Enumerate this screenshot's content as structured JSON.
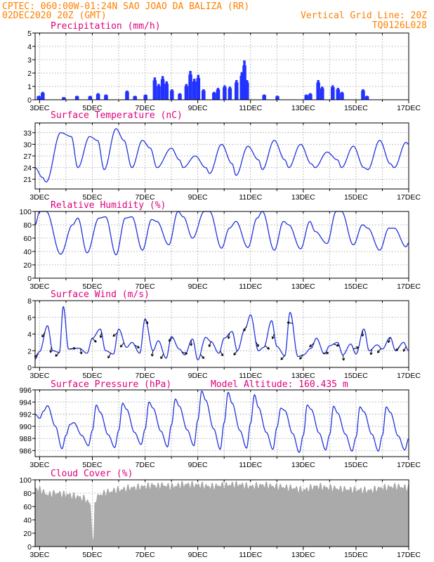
{
  "header": {
    "line1": "CPTEC:   060:00W-01:24N  SAO JOAO DA BALIZA (RR)",
    "line2_left": "02DEC2020 20Z (GMT)",
    "line2_right": "Vertical Grid Line: 20Z",
    "line3_right": "TQ0126L028"
  },
  "colors": {
    "header": "#ff8000",
    "title": "#e0007a",
    "line": "#2233dd",
    "bar": "#2233ff",
    "cloud": "#aaaaaa",
    "arrow": "#000000"
  },
  "x_tick_labels": [
    "3DEC",
    "5DEC",
    "7DEC",
    "9DEC",
    "11DEC",
    "13DEC",
    "15DEC",
    "17DEC"
  ],
  "chart_data": [
    {
      "type": "bar",
      "title": "Precipitation (mm/h)",
      "ylim": [
        0,
        5
      ],
      "yticks": [
        "0",
        "1",
        "2",
        "3",
        "4",
        "5"
      ],
      "x_range_days": [
        2.83,
        17.0
      ],
      "events": [
        {
          "x": 2.95,
          "v": 0.3
        },
        {
          "x": 3.1,
          "v": 0.6
        },
        {
          "x": 3.9,
          "v": 0.2
        },
        {
          "x": 4.4,
          "v": 0.3
        },
        {
          "x": 4.9,
          "v": 0.3
        },
        {
          "x": 5.2,
          "v": 0.5
        },
        {
          "x": 5.5,
          "v": 0.4
        },
        {
          "x": 6.3,
          "v": 0.7
        },
        {
          "x": 6.6,
          "v": 0.3
        },
        {
          "x": 7.0,
          "v": 0.4
        },
        {
          "x": 7.35,
          "v": 1.7
        },
        {
          "x": 7.5,
          "v": 1.2
        },
        {
          "x": 7.65,
          "v": 1.8
        },
        {
          "x": 7.8,
          "v": 1.4
        },
        {
          "x": 8.0,
          "v": 0.8
        },
        {
          "x": 8.3,
          "v": 0.5
        },
        {
          "x": 8.55,
          "v": 1.2
        },
        {
          "x": 8.7,
          "v": 2.2
        },
        {
          "x": 8.85,
          "v": 1.6
        },
        {
          "x": 9.0,
          "v": 1.9
        },
        {
          "x": 9.2,
          "v": 0.8
        },
        {
          "x": 9.6,
          "v": 0.6
        },
        {
          "x": 9.75,
          "v": 0.9
        },
        {
          "x": 10.0,
          "v": 1.1
        },
        {
          "x": 10.2,
          "v": 1.0
        },
        {
          "x": 10.45,
          "v": 1.5
        },
        {
          "x": 10.65,
          "v": 2.1
        },
        {
          "x": 10.75,
          "v": 3.0
        },
        {
          "x": 10.85,
          "v": 1.5
        },
        {
          "x": 11.5,
          "v": 0.4
        },
        {
          "x": 12.0,
          "v": 0.3
        },
        {
          "x": 13.1,
          "v": 0.4
        },
        {
          "x": 13.25,
          "v": 0.5
        },
        {
          "x": 13.55,
          "v": 1.5
        },
        {
          "x": 13.7,
          "v": 1.0
        },
        {
          "x": 14.1,
          "v": 1.1
        },
        {
          "x": 14.3,
          "v": 0.9
        },
        {
          "x": 14.45,
          "v": 0.6
        },
        {
          "x": 15.25,
          "v": 0.8
        },
        {
          "x": 15.4,
          "v": 0.3
        }
      ]
    },
    {
      "type": "line",
      "title": "Surface Temperature (nC)",
      "ylim": [
        18.5,
        35.5
      ],
      "yticks": [
        "21",
        "24",
        "27",
        "30",
        "33"
      ],
      "ytick_values": [
        21,
        24,
        27,
        30,
        33
      ],
      "x_range_days": [
        2.83,
        17.0
      ],
      "key_days": [
        2.83,
        3.1,
        3.25,
        3.8,
        4.2,
        4.45,
        4.9,
        5.2,
        5.45,
        5.9,
        6.2,
        6.5,
        6.9,
        7.2,
        7.45,
        8.0,
        8.3,
        8.45,
        8.9,
        9.3,
        9.45,
        9.9,
        10.3,
        10.45,
        10.9,
        11.3,
        11.45,
        11.9,
        12.3,
        12.45,
        12.9,
        13.3,
        13.45,
        13.9,
        14.3,
        14.45,
        14.9,
        15.3,
        15.45,
        15.9,
        16.3,
        16.45,
        16.9,
        17.0
      ],
      "key_values": [
        24,
        21.5,
        20.3,
        33,
        32,
        24,
        32,
        31,
        23.5,
        34,
        31,
        24,
        31,
        29,
        24,
        29,
        26,
        24,
        27,
        24,
        22.5,
        30,
        25,
        22,
        29.5,
        26,
        23.5,
        31,
        26,
        24,
        30,
        25,
        24,
        28,
        26,
        24,
        29.5,
        24,
        23.5,
        31,
        25,
        24,
        30.5,
        30
      ]
    },
    {
      "type": "line",
      "title": "Relative Humidity (%)",
      "ylim": [
        0,
        100
      ],
      "yticks": [
        "0",
        "20",
        "40",
        "60",
        "80",
        "100"
      ],
      "ytick_values": [
        0,
        20,
        40,
        60,
        80,
        100
      ],
      "x_range_days": [
        2.83,
        17.0
      ],
      "key_days": [
        2.83,
        3.0,
        3.25,
        3.8,
        4.25,
        4.45,
        4.8,
        5.25,
        5.5,
        5.9,
        6.25,
        6.5,
        6.9,
        7.25,
        7.45,
        7.9,
        8.25,
        8.45,
        8.8,
        9.25,
        9.45,
        9.9,
        10.2,
        10.45,
        10.9,
        11.25,
        11.45,
        11.9,
        12.25,
        12.45,
        12.9,
        13.25,
        13.45,
        13.9,
        14.25,
        14.45,
        14.9,
        15.25,
        15.45,
        15.9,
        16.25,
        16.45,
        16.9,
        17.0
      ],
      "key_values": [
        80,
        100,
        100,
        36,
        80,
        90,
        38,
        90,
        92,
        35,
        90,
        92,
        42,
        88,
        85,
        50,
        100,
        92,
        60,
        100,
        100,
        45,
        75,
        85,
        46,
        90,
        100,
        42,
        85,
        80,
        44,
        85,
        70,
        52,
        100,
        100,
        50,
        80,
        75,
        42,
        75,
        75,
        47,
        53
      ]
    },
    {
      "type": "line",
      "title": "Surface Wind (m/s)",
      "ylim": [
        0,
        8
      ],
      "yticks": [
        "0",
        "2",
        "4",
        "6",
        "8"
      ],
      "ytick_values": [
        0,
        2,
        4,
        6,
        8
      ],
      "x_range_days": [
        2.83,
        17.0
      ],
      "key_days": [
        2.83,
        3.0,
        3.3,
        3.5,
        3.75,
        3.9,
        4.1,
        4.5,
        4.8,
        5.0,
        5.3,
        5.5,
        5.8,
        6.0,
        6.3,
        6.5,
        6.8,
        7.0,
        7.3,
        7.5,
        7.8,
        8.0,
        8.3,
        8.5,
        8.8,
        9.0,
        9.3,
        9.5,
        9.8,
        10.0,
        10.3,
        10.5,
        10.8,
        11.0,
        11.3,
        11.5,
        11.8,
        12.0,
        12.3,
        12.5,
        12.8,
        13.0,
        13.3,
        13.5,
        13.8,
        14.0,
        14.3,
        14.5,
        14.8,
        15.0,
        15.3,
        15.5,
        15.8,
        16.0,
        16.3,
        16.5,
        16.8,
        17.0
      ],
      "key_values": [
        1.0,
        1.9,
        5.0,
        2.0,
        1.8,
        7.3,
        2.2,
        2.3,
        1.7,
        3.5,
        4.6,
        2.0,
        1.6,
        4.6,
        2.4,
        3.0,
        1.7,
        5.8,
        2.0,
        3.2,
        1.1,
        3.7,
        2.2,
        1.5,
        3.4,
        0.9,
        3.6,
        3.1,
        1.7,
        3.5,
        4.3,
        2.0,
        4.7,
        6.3,
        2.0,
        2.4,
        5.6,
        2.5,
        1.4,
        6.6,
        1.3,
        1.5,
        2.3,
        3.5,
        1.6,
        2.6,
        3.0,
        1.5,
        2.8,
        1.6,
        4.6,
        2.0,
        2.7,
        2.2,
        3.6,
        2.0,
        3.0,
        2.0
      ],
      "vectors": [
        {
          "x": 2.95,
          "ang": -130
        },
        {
          "x": 3.2,
          "ang": -120
        },
        {
          "x": 3.45,
          "ang": -100
        },
        {
          "x": 3.75,
          "ang": -135
        },
        {
          "x": 4.15,
          "ang": 10
        },
        {
          "x": 4.55,
          "ang": -80
        },
        {
          "x": 5.0,
          "ang": -45
        },
        {
          "x": 5.35,
          "ang": -100
        },
        {
          "x": 5.7,
          "ang": -120
        },
        {
          "x": 5.95,
          "ang": -140
        },
        {
          "x": 6.2,
          "ang": -130
        },
        {
          "x": 6.6,
          "ang": -30
        },
        {
          "x": 7.0,
          "ang": -60
        },
        {
          "x": 7.3,
          "ang": -100
        },
        {
          "x": 7.7,
          "ang": -120
        },
        {
          "x": 8.05,
          "ang": -135
        },
        {
          "x": 8.4,
          "ang": -20
        },
        {
          "x": 8.75,
          "ang": -90
        },
        {
          "x": 9.1,
          "ang": -50
        },
        {
          "x": 9.5,
          "ang": -110
        },
        {
          "x": 9.85,
          "ang": -60
        },
        {
          "x": 10.2,
          "ang": -100
        },
        {
          "x": 10.5,
          "ang": -130
        },
        {
          "x": 10.85,
          "ang": -120
        },
        {
          "x": 11.2,
          "ang": -60
        },
        {
          "x": 11.55,
          "ang": -40
        },
        {
          "x": 11.9,
          "ang": -110
        },
        {
          "x": 12.3,
          "ang": -135
        },
        {
          "x": 12.6,
          "ang": 170
        },
        {
          "x": 13.0,
          "ang": -130
        },
        {
          "x": 13.4,
          "ang": -140
        },
        {
          "x": 13.75,
          "ang": 0
        },
        {
          "x": 14.15,
          "ang": -20
        },
        {
          "x": 14.5,
          "ang": -80
        },
        {
          "x": 14.9,
          "ang": 20
        },
        {
          "x": 15.25,
          "ang": -90
        },
        {
          "x": 15.6,
          "ang": -100
        },
        {
          "x": 15.95,
          "ang": -130
        },
        {
          "x": 16.3,
          "ang": -110
        },
        {
          "x": 16.65,
          "ang": -130
        },
        {
          "x": 16.9,
          "ang": -120
        }
      ]
    },
    {
      "type": "line",
      "title": "Surface Pressure (hPa)",
      "annotation": "Model Altitude: 160.435 m",
      "ylim": [
        985,
        996
      ],
      "yticks": [
        "986",
        "988",
        "990",
        "992",
        "994",
        "996"
      ],
      "ytick_values": [
        986,
        988,
        990,
        992,
        994,
        996
      ],
      "x_range_days": [
        2.83,
        17.0
      ],
      "key_days": [
        2.83,
        3.0,
        3.15,
        3.3,
        3.6,
        3.85,
        4.0,
        4.15,
        4.3,
        4.6,
        4.85,
        5.0,
        5.15,
        5.3,
        5.6,
        5.85,
        6.0,
        6.15,
        6.3,
        6.6,
        6.85,
        7.0,
        7.15,
        7.3,
        7.6,
        7.85,
        8.0,
        8.15,
        8.3,
        8.6,
        8.85,
        9.0,
        9.15,
        9.3,
        9.6,
        9.85,
        10.0,
        10.15,
        10.3,
        10.6,
        10.85,
        11.0,
        11.15,
        11.3,
        11.6,
        11.85,
        12.0,
        12.15,
        12.3,
        12.6,
        12.85,
        13.0,
        13.15,
        13.3,
        13.6,
        13.85,
        14.0,
        14.15,
        14.3,
        14.6,
        14.85,
        15.0,
        15.15,
        15.3,
        15.6,
        15.85,
        16.0,
        16.15,
        16.3,
        16.6,
        16.85,
        17.0
      ],
      "key_values": [
        992,
        991.3,
        992.5,
        993.4,
        990,
        986.3,
        988.5,
        990.3,
        990.6,
        988.5,
        986.8,
        989.3,
        993.5,
        992.3,
        988.6,
        986.5,
        989.3,
        993.8,
        992.8,
        989,
        987,
        989.5,
        994,
        993,
        989.2,
        986.6,
        990.2,
        994.5,
        993.3,
        989.4,
        986.8,
        991,
        995.8,
        994.3,
        989.6,
        986.2,
        990.6,
        995.6,
        993.8,
        989.3,
        986.4,
        990.5,
        995.2,
        993.1,
        989,
        986.2,
        989.8,
        993,
        992.6,
        988.8,
        985.7,
        988.5,
        993.5,
        992.8,
        988.9,
        986.1,
        988.6,
        993.3,
        992.2,
        988.7,
        985.9,
        988.2,
        993.2,
        992.4,
        988.7,
        985.9,
        988.5,
        993.2,
        992.3,
        988.4,
        986.1,
        988
      ]
    },
    {
      "type": "area",
      "title": "Cloud Cover (%)",
      "ylim": [
        0,
        100
      ],
      "yticks": [
        "0",
        "20",
        "40",
        "60",
        "80",
        "100"
      ],
      "ytick_values": [
        0,
        20,
        40,
        60,
        80,
        100
      ],
      "x_range_days": [
        2.83,
        17.0
      ],
      "key_days": [
        2.83,
        3.0,
        3.3,
        3.6,
        4.0,
        4.4,
        4.7,
        4.9,
        5.05,
        5.1,
        5.3,
        5.6,
        6.0,
        6.5,
        7.0,
        7.35,
        7.45,
        7.6,
        8.0,
        8.5,
        9.0,
        9.5,
        10.0,
        10.5,
        11.0,
        11.5,
        12.0,
        12.5,
        13.0,
        13.5,
        14.0,
        14.5,
        15.0,
        15.5,
        16.0,
        16.5,
        17.0
      ],
      "key_values": [
        88,
        85,
        78,
        80,
        78,
        75,
        72,
        65,
        5,
        70,
        78,
        82,
        85,
        88,
        90,
        92,
        90,
        92,
        90,
        93,
        92,
        90,
        92,
        93,
        90,
        92,
        90,
        88,
        85,
        90,
        88,
        86,
        85,
        84,
        88,
        90,
        88
      ]
    }
  ]
}
